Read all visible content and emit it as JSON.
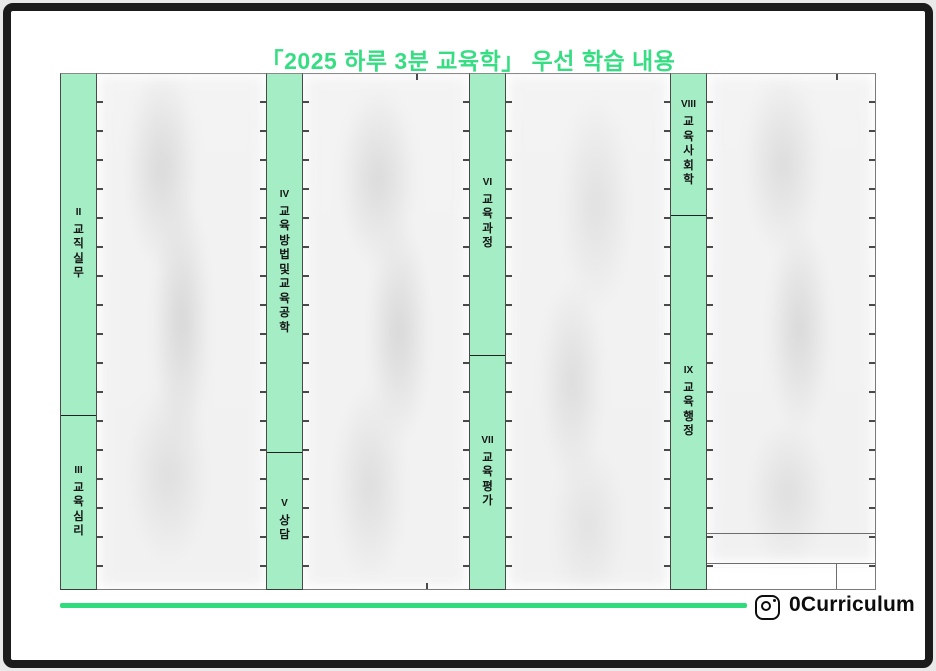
{
  "title": "「2025 하루 3분 교육학」 우선 학습 내용",
  "sections": [
    {
      "cells": [
        {
          "numeral": "II",
          "label": "교직실무"
        },
        {
          "numeral": "III",
          "label": "교육심리"
        }
      ]
    },
    {
      "cells": [
        {
          "numeral": "IV",
          "label": "교육방법및교육공학"
        },
        {
          "numeral": "V",
          "label": "상담"
        }
      ]
    },
    {
      "cells": [
        {
          "numeral": "VI",
          "label": "교육과정"
        },
        {
          "numeral": "VII",
          "label": "교육평가"
        }
      ]
    },
    {
      "cells": [
        {
          "numeral": "VIII",
          "label": "교육사회학"
        },
        {
          "numeral": "IX",
          "label": "교육행정"
        }
      ]
    }
  ],
  "footer": {
    "handle": "0Curriculum",
    "icon": "instagram"
  },
  "colors": {
    "title_green": "#36dd83",
    "label_mint": "#a5edc5",
    "rule_green": "#2edb7d"
  }
}
